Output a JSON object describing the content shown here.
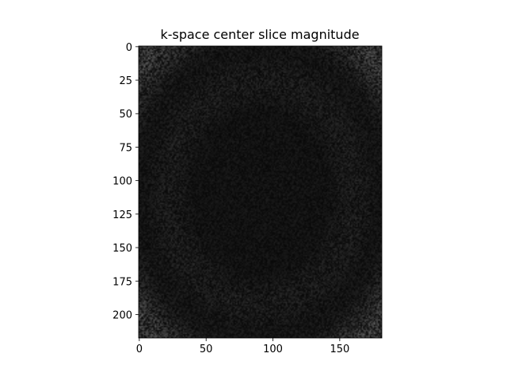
{
  "chart_data": {
    "type": "heatmap",
    "title": "k-space center slice magnitude",
    "xlabel": "",
    "ylabel": "",
    "colormap": "gray",
    "xlim": [
      -0.5,
      181.5
    ],
    "ylim": [
      217.5,
      -0.5
    ],
    "x_ticks": [
      0,
      50,
      100,
      150
    ],
    "y_ticks": [
      0,
      25,
      50,
      75,
      100,
      125,
      150,
      175,
      200
    ],
    "grid": false,
    "legend": "none",
    "colors": {
      "background": "#ffffff",
      "axis": "#000000"
    }
  }
}
